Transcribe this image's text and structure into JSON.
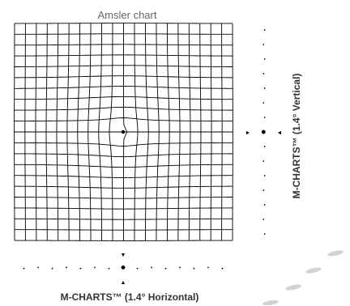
{
  "amsler": {
    "title": "Amsler chart",
    "grid_cells": 20,
    "distortion": "center",
    "line_color": "#000000",
    "fixation_dot": true
  },
  "m_charts": {
    "horizontal_label": "M-CHARTS™ (1.4° Horizontal)",
    "vertical_label": "M-CHARTS™ (1.4° Vertical)",
    "dot_color": "#000000",
    "arrow_markers": [
      "▼",
      "▲",
      "►",
      "◄"
    ]
  },
  "decoration": {
    "ellipse_color": "#d0d0d0",
    "ellipse_count": 4
  }
}
